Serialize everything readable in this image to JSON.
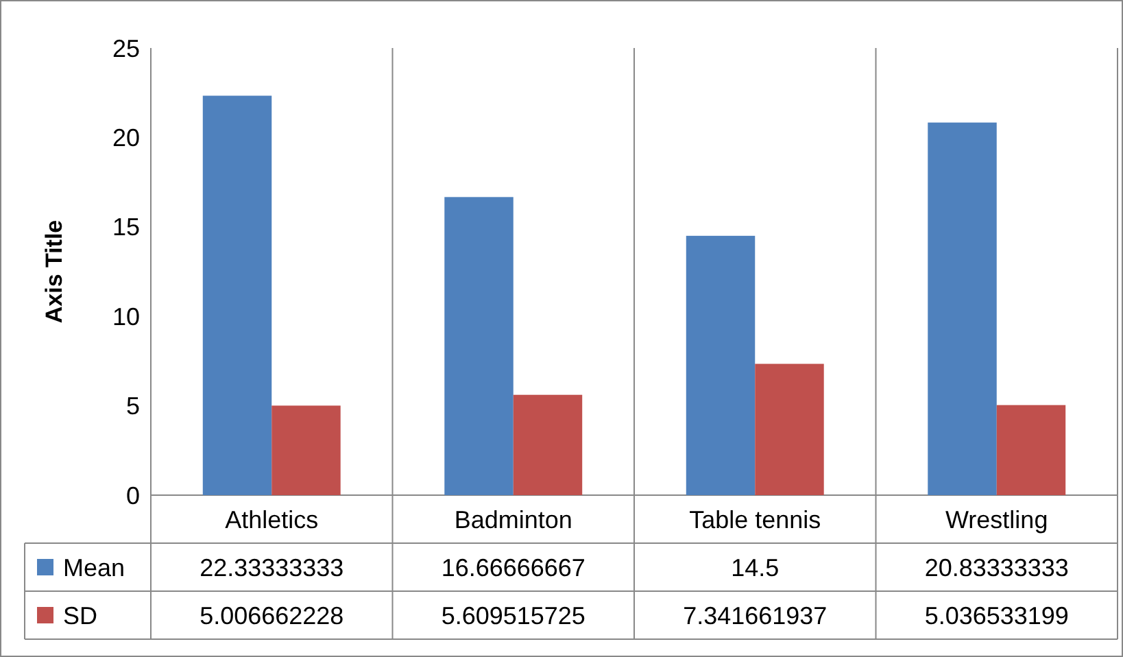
{
  "chart_data": {
    "type": "bar",
    "ylabel": "Axis Title",
    "categories": [
      "Athletics",
      "Badminton",
      "Table tennis",
      "Wrestling"
    ],
    "series": [
      {
        "name": "Mean",
        "color": "#4f81bd",
        "values": [
          22.33333333,
          16.66666667,
          14.5,
          20.83333333
        ]
      },
      {
        "name": "SD",
        "color": "#c0504d",
        "values": [
          5.006662228,
          5.609515725,
          7.341661937,
          5.036533199
        ]
      }
    ],
    "ylim": [
      0,
      25
    ],
    "yticks": [
      0,
      5,
      10,
      15,
      20,
      25
    ],
    "grid": false,
    "data_labels": true,
    "legend": "bottom"
  }
}
